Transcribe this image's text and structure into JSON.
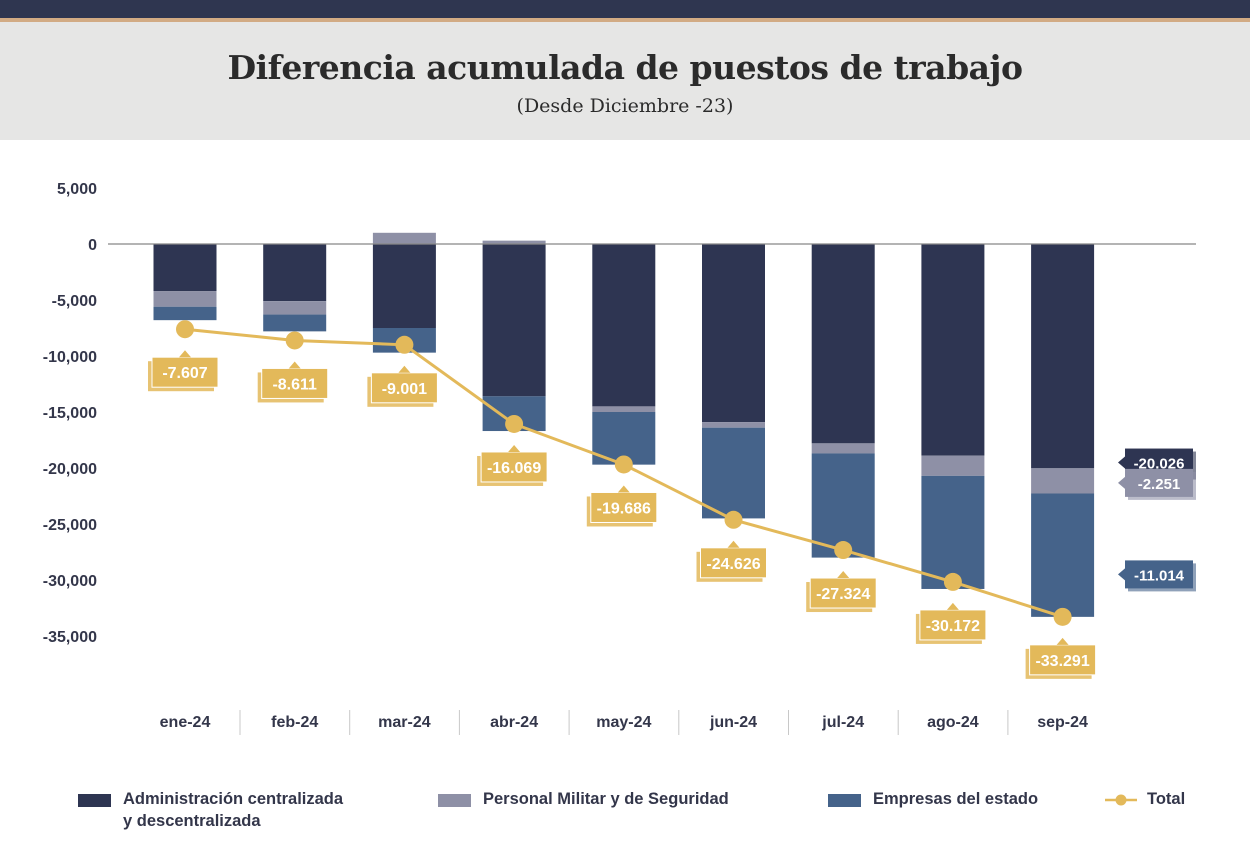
{
  "header": {
    "title": "Diferencia acumulada de puestos de trabajo",
    "subtitle": "(Desde Diciembre -23)"
  },
  "colors": {
    "admin": "#2e3552",
    "militar": "#8e90a6",
    "empresas": "#45638a",
    "total": "#e3b95a"
  },
  "chart_data": {
    "type": "bar",
    "stacked": true,
    "title": "Diferencia acumulada de puestos de trabajo",
    "subtitle": "(Desde Diciembre -23)",
    "categories": [
      "ene-24",
      "feb-24",
      "mar-24",
      "abr-24",
      "may-24",
      "jun-24",
      "jul-24",
      "ago-24",
      "sep-24"
    ],
    "ylim": [
      -40000,
      5000
    ],
    "yticks": [
      5000,
      0,
      -5000,
      -10000,
      -15000,
      -20000,
      -25000,
      -30000,
      -35000
    ],
    "ytick_labels": [
      "5,000",
      "0",
      "-5,000",
      "-10,000",
      "-15,000",
      "-20,000",
      "-25,000",
      "-30,000",
      "-35,000"
    ],
    "series": [
      {
        "name": "Administración centralizada y descentralizada",
        "key": "admin",
        "values": [
          -4200,
          -5100,
          -7500,
          -13600,
          -14500,
          -15900,
          -17800,
          -18900,
          -20026
        ]
      },
      {
        "name": "Personal Militar y de Seguridad",
        "key": "militar",
        "values": [
          -1400,
          -1200,
          1000,
          300,
          -500,
          -500,
          -900,
          -1800,
          -2251
        ]
      },
      {
        "name": "Empresas del estado",
        "key": "empresas",
        "values": [
          -1200,
          -1500,
          -2200,
          -3100,
          -4700,
          -8100,
          -9300,
          -10100,
          -11014
        ]
      },
      {
        "name": "Total",
        "key": "total",
        "type": "line",
        "values": [
          -7607,
          -8611,
          -9001,
          -16069,
          -19686,
          -24626,
          -27324,
          -30172,
          -33291
        ],
        "labels": [
          "-7.607",
          "-8.611",
          "-9.001",
          "-16.069",
          "-19.686",
          "-24.626",
          "-27.324",
          "-30.172",
          "-33.291"
        ]
      }
    ],
    "end_labels": [
      {
        "key": "admin",
        "text": "-20.026"
      },
      {
        "key": "militar",
        "text": "-2.251"
      },
      {
        "key": "empresas",
        "text": "-11.014"
      }
    ],
    "legend_position": "bottom"
  },
  "legend": [
    {
      "key": "admin",
      "line1": "Administración centralizada",
      "line2": "y descentralizada"
    },
    {
      "key": "militar",
      "line1": "Personal Militar y de Seguridad"
    },
    {
      "key": "empresas",
      "line1": "Empresas del estado"
    },
    {
      "key": "total",
      "line1": "Total"
    }
  ]
}
